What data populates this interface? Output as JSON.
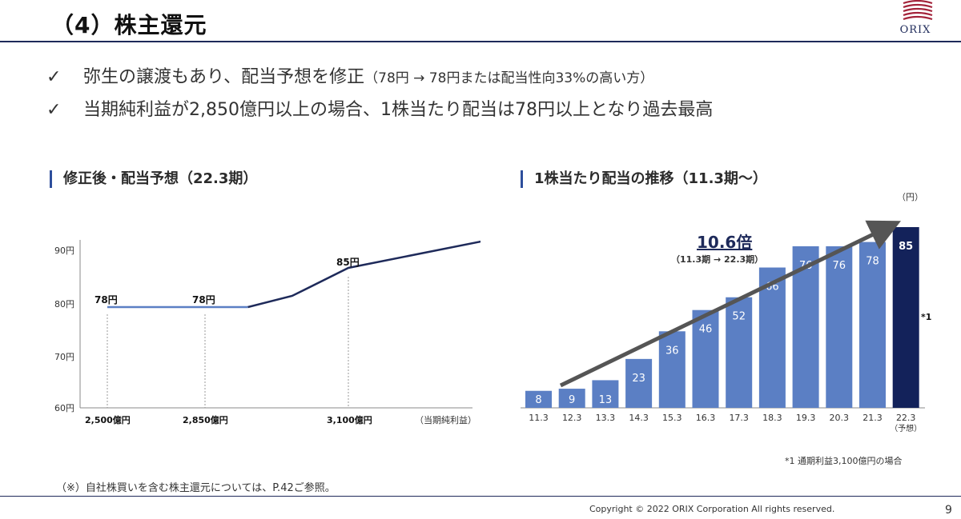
{
  "header": {
    "title": "（4）株主還元",
    "logo_text": "ORIX",
    "accent_color": "#1e2a5a",
    "logo_color": "#a3233a"
  },
  "bullets": [
    {
      "icon": "check-mark",
      "text": "弥生の譲渡もあり、配当予想を修正",
      "note": "（78円 → 78円または配当性向33%の高い方）"
    },
    {
      "icon": "check-mark",
      "text": "当期純利益が2,850億円以上の場合、1株当たり配当は78円以上となり過去最高",
      "note": ""
    }
  ],
  "left_section": {
    "title": "修正後・配当予想（22.3期）"
  },
  "right_section": {
    "title": "1株当たり配当の推移（11.3期〜）",
    "unit": "（円）",
    "growth_label": "10.6倍",
    "growth_sub": "（11.3期 → 22.3期）",
    "forecast_marker": "*1",
    "footnote": "*1 通期利益3,100億円の場合"
  },
  "chart_data": [
    {
      "type": "line",
      "title": "修正後・配当予想（22.3期）",
      "ylim": [
        60,
        90
      ],
      "yticks": [
        "90円",
        "80円",
        "70円",
        "60円"
      ],
      "xticks": [
        "2,500億円",
        "2,850億円",
        "3,100億円"
      ],
      "xlabel": "（当期純利益）",
      "flat_series": {
        "x": [
          2500,
          2850
        ],
        "y": [
          78,
          78
        ],
        "color": "#5b7fc4"
      },
      "rising_series": {
        "x": [
          2850,
          3100,
          3450
        ],
        "y": [
          78,
          85,
          90
        ],
        "color": "#1e2a5a"
      },
      "annotations": [
        "78円",
        "78円",
        "85円"
      ],
      "grid": false
    },
    {
      "type": "bar",
      "title": "1株当たり配当の推移（11.3期〜）",
      "categories": [
        "11.3",
        "12.3",
        "13.3",
        "14.3",
        "15.3",
        "16.3",
        "17.3",
        "18.3",
        "19.3",
        "20.3",
        "21.3",
        "22.3"
      ],
      "category_sublabels": [
        "",
        "",
        "",
        "",
        "",
        "",
        "",
        "",
        "",
        "",
        "",
        "（予想）"
      ],
      "values": [
        8,
        9,
        13,
        23,
        36,
        46,
        52,
        66,
        76,
        76,
        78,
        85
      ],
      "labels": [
        "8",
        "9",
        "13",
        "23",
        "36",
        "46",
        "52",
        "66",
        "76",
        "76",
        "78",
        "85"
      ],
      "ylim": [
        0,
        85
      ],
      "bar_color": "#5b7fc4",
      "forecast_color": "#13225a",
      "arrow_color": "#555555",
      "grid": false
    }
  ],
  "footer": {
    "note": "（※）自社株買いを含む株主還元については、P.42ご参照。",
    "copyright": "Copyright © 2022 ORIX Corporation  All rights reserved.",
    "page": "9"
  }
}
